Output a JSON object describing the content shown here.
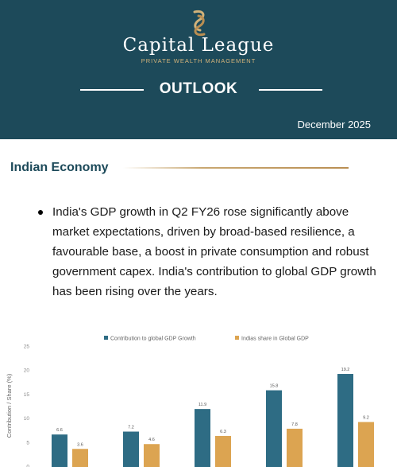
{
  "header": {
    "brand_name": "Capital League",
    "tagline": "PRIVATE WEALTH MANAGEMENT",
    "report_title": "OUTLOOK",
    "date": "December 2025",
    "bg_color": "#1d4a5a",
    "accent_color": "#c9a872",
    "logo_icon": "gold-ribbon-logo-icon"
  },
  "section": {
    "title": "Indian Economy",
    "bullets": [
      "India's GDP growth in Q2 FY26 rose significantly above market expectations, driven by broad-based resilience, a favourable base, a boost in private consumption and robust government capex. India's contribution to global GDP growth has been rising over the years."
    ]
  },
  "chart_data": {
    "type": "bar",
    "ylabel": "Contribution / Share (%)",
    "ylim": [
      0,
      25
    ],
    "yticks": [
      "0",
      "5",
      "10",
      "15",
      "20",
      "25"
    ],
    "categories": [
      "",
      "",
      "",
      "",
      ""
    ],
    "series": [
      {
        "name": "Contribution to global GDP Growth",
        "color": "#2e6c84",
        "values": [
          6.6,
          7.2,
          11.9,
          15.8,
          19.2
        ]
      },
      {
        "name": "Indias share in Global GDP",
        "color": "#dca451",
        "values": [
          3.6,
          4.6,
          6.3,
          7.8,
          9.2
        ]
      }
    ],
    "grid": false,
    "legend": "top"
  }
}
